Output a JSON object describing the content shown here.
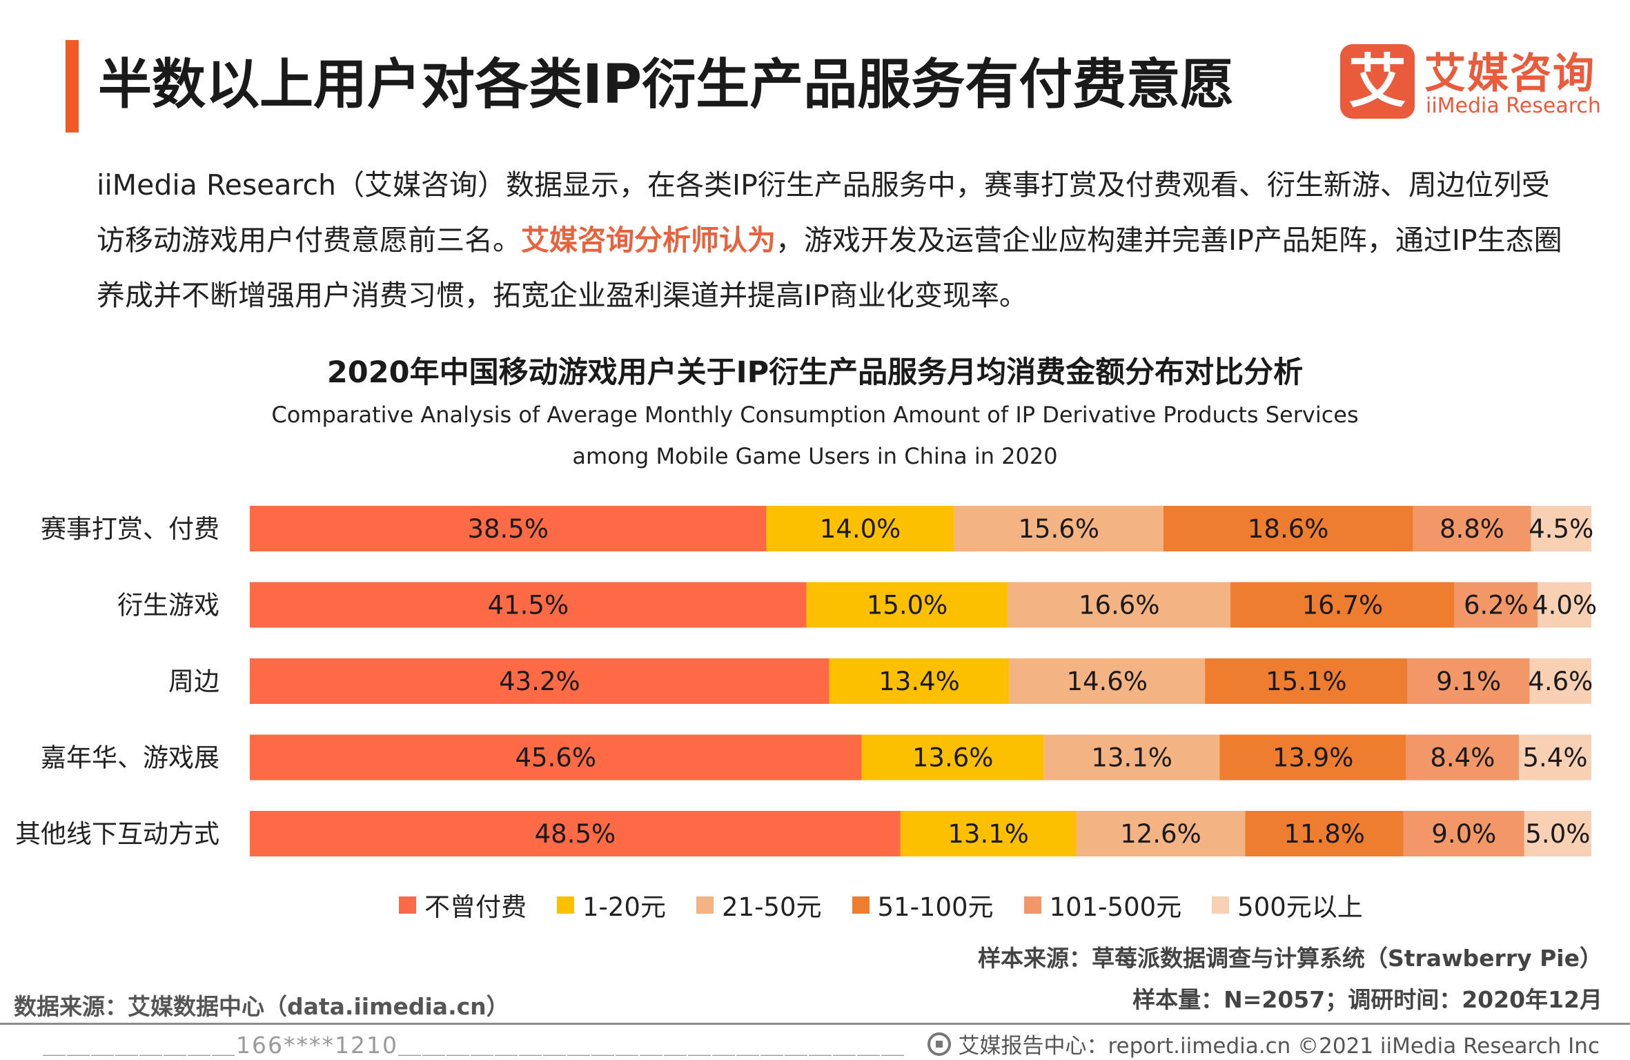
{
  "header": {
    "title": "半数以上用户对各类IP衍生产品服务有付费意愿",
    "logo_glyph": "艾",
    "logo_cn": "艾媒咨询",
    "logo_en": "iiMedia Research"
  },
  "intro": {
    "part1": "iiMedia Research（艾媒咨询）数据显示，在各类IP衍生产品服务中，赛事打赏及付费观看、衍生新游、周边位列受访移动游戏用户付费意愿前三名。",
    "highlight": "艾媒咨询分析师认为",
    "part2": "，游戏开发及运营企业应构建并完善IP产品矩阵，通过IP生态圈养成并不断增强用户消费习惯，拓宽企业盈利渠道并提高IP商业化变现率。"
  },
  "chart_data": {
    "type": "bar",
    "orientation": "horizontal",
    "stacked": "percent",
    "title": "2020年中国移动游戏用户关于IP衍生产品服务月均消费金额分布对比分析",
    "subtitle_line1": "Comparative Analysis of Average Monthly Consumption Amount of IP Derivative Products  Services",
    "subtitle_line2": "among Mobile Game Users in China in 2020",
    "categories": [
      "赛事打赏、付费",
      "衍生游戏",
      "周边",
      "嘉年华、游戏展",
      "其他线下互动方式"
    ],
    "series": [
      {
        "name": "不曾付费",
        "color": "#fc6b45",
        "values": [
          38.5,
          41.5,
          43.2,
          45.6,
          48.5
        ]
      },
      {
        "name": "1-20元",
        "color": "#fdc000",
        "values": [
          14.0,
          15.0,
          13.4,
          13.6,
          13.1
        ]
      },
      {
        "name": "21-50元",
        "color": "#f4b383",
        "values": [
          15.6,
          16.6,
          14.6,
          13.1,
          12.6
        ]
      },
      {
        "name": "51-100元",
        "color": "#ef7d2f",
        "values": [
          18.6,
          16.7,
          15.1,
          13.9,
          11.8
        ]
      },
      {
        "name": "101-500元",
        "color": "#f29868",
        "values": [
          8.8,
          6.2,
          9.1,
          8.4,
          9.0
        ]
      },
      {
        "name": "500元以上",
        "color": "#f8d0b4",
        "values": [
          4.5,
          4.0,
          4.6,
          5.4,
          5.0
        ]
      }
    ],
    "value_suffix": "%",
    "xlim": [
      0,
      100
    ],
    "legend_position": "bottom",
    "grid": false
  },
  "sources": {
    "sample_source": "样本来源：草莓派数据调查与计算系统（Strawberry Pie）",
    "sample_size": "样本量：N=2057；调研时间：2020年12月",
    "data_source": "数据来源：艾媒数据中心（data.iimedia.cn）"
  },
  "footer": {
    "left": "＿＿＿＿＿＿＿＿166****1210＿＿＿＿＿＿＿＿＿＿＿＿＿＿＿＿＿＿＿＿＿",
    "right": "艾媒报告中心：report.iimedia.cn  ©2021  iiMedia Research  Inc"
  },
  "colors": {
    "accent": "#f15a24",
    "brand": "#e95b3b"
  }
}
